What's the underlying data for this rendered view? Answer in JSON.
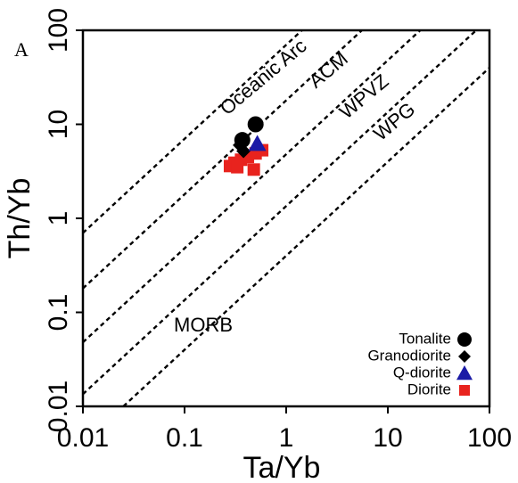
{
  "chart_data": {
    "type": "scatter",
    "panel_label": "A",
    "xlabel": "Ta/Yb",
    "ylabel": "Th/Yb",
    "x_scale": "log",
    "y_scale": "log",
    "xlim": [
      0.01,
      100
    ],
    "ylim": [
      0.01,
      100
    ],
    "x_ticks": [
      "0.01",
      "0.1",
      "1",
      "10",
      "100"
    ],
    "y_ticks": [
      "0.01",
      "0.1",
      "1",
      "10",
      "100"
    ],
    "grid": false,
    "legend_position": "bottom-right",
    "field_labels": [
      "Oceanic Arc",
      "ACM",
      "WPVZ",
      "WPG",
      "MORB"
    ],
    "field_boundary_lines": [
      {
        "x": [
          0.01,
          100
        ],
        "y": [
          0.7,
          7000
        ]
      },
      {
        "x": [
          0.01,
          100
        ],
        "y": [
          0.18,
          1800
        ]
      },
      {
        "x": [
          0.01,
          100
        ],
        "y": [
          0.048,
          480
        ]
      },
      {
        "x": [
          0.01,
          100
        ],
        "y": [
          0.0135,
          135
        ]
      },
      {
        "x": [
          0.025,
          100
        ],
        "y": [
          0.01,
          40
        ]
      }
    ],
    "series": [
      {
        "name": "Tonalite",
        "marker": "circle",
        "color": "#000000",
        "points": [
          [
            0.5,
            10.0
          ],
          [
            0.37,
            6.8
          ]
        ]
      },
      {
        "name": "Granodiorite",
        "marker": "diamond",
        "color": "#000000",
        "points": [
          [
            0.35,
            6.0
          ],
          [
            0.38,
            5.2
          ]
        ]
      },
      {
        "name": "Q-diorite",
        "marker": "triangle",
        "color": "#1a1aa6",
        "points": [
          [
            0.52,
            6.2
          ]
        ]
      },
      {
        "name": "Diorite",
        "marker": "square",
        "color": "#e8231e",
        "points": [
          [
            0.28,
            3.6
          ],
          [
            0.31,
            3.9
          ],
          [
            0.36,
            4.2
          ],
          [
            0.42,
            4.5
          ],
          [
            0.5,
            4.9
          ],
          [
            0.58,
            5.3
          ],
          [
            0.48,
            3.3
          ],
          [
            0.33,
            3.5
          ]
        ]
      }
    ]
  }
}
